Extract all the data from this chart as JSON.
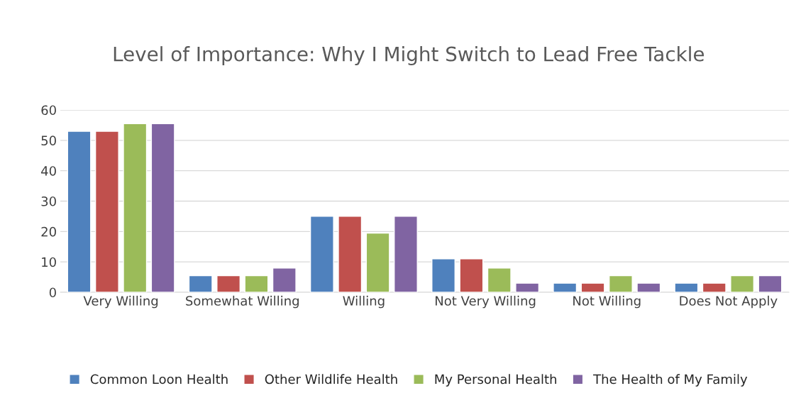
{
  "chart_data": {
    "type": "bar",
    "title": "Level of Importance: Why I Might Switch to Lead Free Tackle",
    "categories": [
      "Very Willing",
      "Somewhat Willing",
      "Willing",
      "Not Very Willing",
      "Not Willing",
      "Does Not Apply"
    ],
    "series": [
      {
        "name": "Common Loon Health",
        "color": "#4f81bd",
        "values": [
          53,
          5.5,
          25,
          11,
          3,
          3
        ]
      },
      {
        "name": "Other Wildlife Health",
        "color": "#c0504d",
        "values": [
          53,
          5.5,
          25,
          11,
          3,
          3
        ]
      },
      {
        "name": "My Personal Health",
        "color": "#9bbb59",
        "values": [
          55.5,
          5.5,
          19.5,
          8,
          5.5,
          5.5
        ]
      },
      {
        "name": "The Health of My Family",
        "color": "#8064a2",
        "values": [
          55.5,
          8,
          25,
          3,
          3,
          5.5
        ]
      }
    ],
    "ylim": [
      0,
      60
    ],
    "yticks": [
      0,
      10,
      20,
      30,
      40,
      50,
      60
    ],
    "grid": "y",
    "legend": "bottom"
  }
}
